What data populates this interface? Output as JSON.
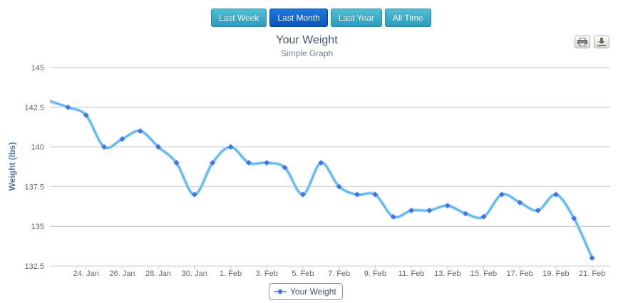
{
  "range_buttons": [
    {
      "label": "Last Week",
      "active": false
    },
    {
      "label": "Last Month",
      "active": true
    },
    {
      "label": "Last Year",
      "active": false
    },
    {
      "label": "All Time",
      "active": false
    }
  ],
  "export_icons": [
    "print-icon",
    "download-icon"
  ],
  "colors": {
    "line": "#4fb3ea",
    "marker": "#4572e6",
    "grid": "#c0c0c0",
    "active_button": "#0c55b8",
    "button": "#3aaac6"
  },
  "chart_data": {
    "type": "line",
    "title": "Your Weight",
    "subtitle": "Simple Graph",
    "ylabel": "Weight (lbs)",
    "ylim": [
      132.5,
      145
    ],
    "yticks": [
      "132.5",
      "135",
      "137.5",
      "140",
      "142.5",
      "145"
    ],
    "xlim": [
      "2014-01-22",
      "2014-02-22"
    ],
    "xticks": [
      "24. Jan",
      "26. Jan",
      "28. Jan",
      "30. Jan",
      "1. Feb",
      "3. Feb",
      "5. Feb",
      "7. Feb",
      "9. Feb",
      "11. Feb",
      "13. Feb",
      "15. Feb",
      "17. Feb",
      "19. Feb",
      "21. Feb"
    ],
    "grid": true,
    "legend_position": "bottom-center",
    "series": [
      {
        "name": "Your Weight",
        "x": [
          "2014-01-23",
          "2014-01-24",
          "2014-01-25",
          "2014-01-26",
          "2014-01-27",
          "2014-01-28",
          "2014-01-29",
          "2014-01-30",
          "2014-01-31",
          "2014-02-01",
          "2014-02-02",
          "2014-02-03",
          "2014-02-04",
          "2014-02-05",
          "2014-02-06",
          "2014-02-07",
          "2014-02-08",
          "2014-02-09",
          "2014-02-10",
          "2014-02-11",
          "2014-02-12",
          "2014-02-13",
          "2014-02-14",
          "2014-02-15",
          "2014-02-16",
          "2014-02-17",
          "2014-02-18",
          "2014-02-19",
          "2014-02-20",
          "2014-02-21"
        ],
        "values": [
          142.5,
          142,
          140,
          140.5,
          141,
          140,
          139,
          137,
          139,
          140,
          139,
          139,
          138.7,
          137,
          139,
          137.5,
          137,
          137,
          135.6,
          136,
          136,
          136.3,
          135.8,
          135.6,
          137,
          136.5,
          136,
          137,
          135.5,
          133
        ]
      }
    ]
  }
}
